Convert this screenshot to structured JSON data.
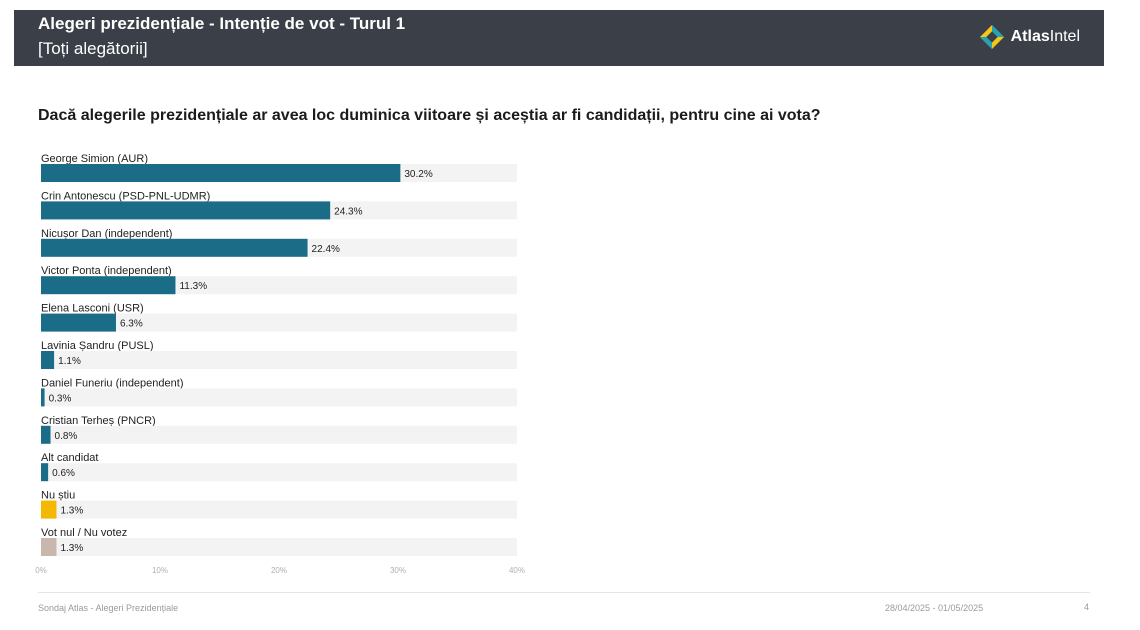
{
  "header": {
    "title": "Alegeri prezidențiale - Intenție de vot - Turul 1",
    "subtitle": "[Toți alegătorii]",
    "brand_bold": "Atlas",
    "brand_light": "Intel",
    "colors": {
      "background": "#3a3f48",
      "logo_yellow": "#f5c518",
      "logo_teal": "#25a3b5"
    }
  },
  "question": "Dacă alegerile prezidențiale ar avea loc duminica viitoare și aceștia ar fi candidații, pentru cine ai vota?",
  "chart_data": {
    "type": "bar",
    "orientation": "horizontal",
    "xlim": [
      0,
      40
    ],
    "xticks": [
      "0%",
      "10%",
      "20%",
      "30%",
      "40%"
    ],
    "grid": false,
    "legend": "none",
    "bars": [
      {
        "label": "George Simion (AUR)",
        "value": 30.2,
        "display": "30.2%",
        "color": "#1b6d87"
      },
      {
        "label": "Crin Antonescu (PSD-PNL-UDMR)",
        "value": 24.3,
        "display": "24.3%",
        "color": "#1b6d87"
      },
      {
        "label": "Nicușor Dan (independent)",
        "value": 22.4,
        "display": "22.4%",
        "color": "#1b6d87"
      },
      {
        "label": "Victor Ponta (independent)",
        "value": 11.3,
        "display": "11.3%",
        "color": "#1b6d87"
      },
      {
        "label": "Elena Lasconi (USR)",
        "value": 6.3,
        "display": "6.3%",
        "color": "#1b6d87"
      },
      {
        "label": "Lavinia Șandru (PUSL)",
        "value": 1.1,
        "display": "1.1%",
        "color": "#1b6d87"
      },
      {
        "label": "Daniel Funeriu (independent)",
        "value": 0.3,
        "display": "0.3%",
        "color": "#1b6d87"
      },
      {
        "label": "Cristian Terheș (PNCR)",
        "value": 0.8,
        "display": "0.8%",
        "color": "#1b6d87"
      },
      {
        "label": "Alt candidat",
        "value": 0.6,
        "display": "0.6%",
        "color": "#1b6d87"
      },
      {
        "label": "Nu știu",
        "value": 1.3,
        "display": "1.3%",
        "color": "#f5b800"
      },
      {
        "label": "Vot nul / Nu votez",
        "value": 1.3,
        "display": "1.3%",
        "color": "#c9b7ad"
      }
    ],
    "track_color": "#f3f3f3"
  },
  "footer": {
    "source": "Sondaj Atlas - Alegeri Prezidențiale",
    "date_range": "28/04/2025 - 01/05/2025",
    "page": "4"
  }
}
